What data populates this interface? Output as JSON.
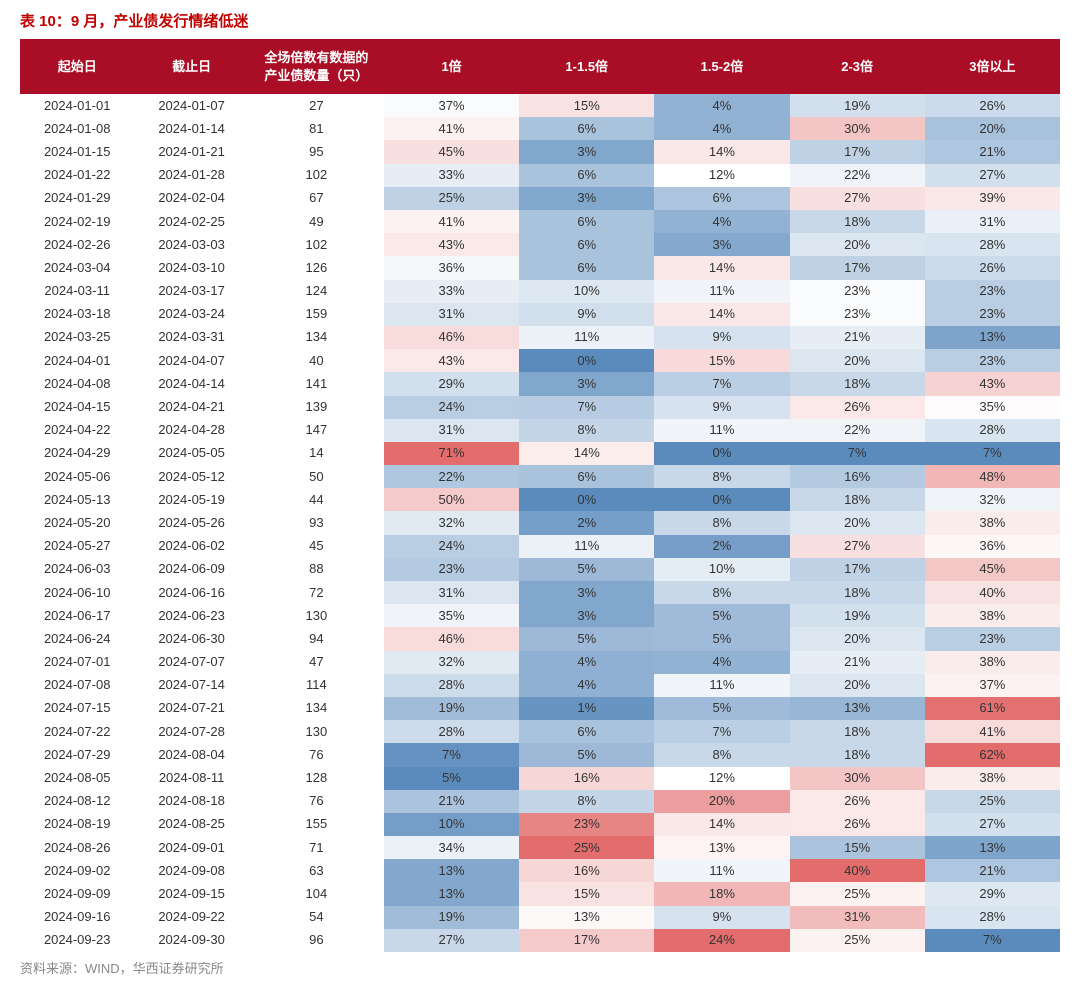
{
  "title": "表 10：9 月，产业债发行情绪低迷",
  "footer": "资料来源：WIND，华西证券研究所",
  "colors": {
    "header_bg": "#a90e26",
    "header_fg": "#ffffff",
    "title_color": "#c00000"
  },
  "columns": [
    "起始日",
    "截止日",
    "全场倍数有数据的\n产业债数量（只）",
    "1倍",
    "1-1.5倍",
    "1.5-2倍",
    "2-3倍",
    "3倍以上"
  ],
  "heat_columns": [
    3,
    4,
    5,
    6,
    7
  ],
  "rows": [
    {
      "start": "2024-01-01",
      "end": "2024-01-07",
      "count": 27,
      "p": [
        37,
        15,
        4,
        19,
        26
      ]
    },
    {
      "start": "2024-01-08",
      "end": "2024-01-14",
      "count": 81,
      "p": [
        41,
        6,
        4,
        30,
        20
      ]
    },
    {
      "start": "2024-01-15",
      "end": "2024-01-21",
      "count": 95,
      "p": [
        45,
        3,
        14,
        17,
        21
      ]
    },
    {
      "start": "2024-01-22",
      "end": "2024-01-28",
      "count": 102,
      "p": [
        33,
        6,
        12,
        22,
        27
      ]
    },
    {
      "start": "2024-01-29",
      "end": "2024-02-04",
      "count": 67,
      "p": [
        25,
        3,
        6,
        27,
        39
      ]
    },
    {
      "start": "2024-02-19",
      "end": "2024-02-25",
      "count": 49,
      "p": [
        41,
        6,
        4,
        18,
        31
      ]
    },
    {
      "start": "2024-02-26",
      "end": "2024-03-03",
      "count": 102,
      "p": [
        43,
        6,
        3,
        20,
        28
      ]
    },
    {
      "start": "2024-03-04",
      "end": "2024-03-10",
      "count": 126,
      "p": [
        36,
        6,
        14,
        17,
        26
      ]
    },
    {
      "start": "2024-03-11",
      "end": "2024-03-17",
      "count": 124,
      "p": [
        33,
        10,
        11,
        23,
        23
      ]
    },
    {
      "start": "2024-03-18",
      "end": "2024-03-24",
      "count": 159,
      "p": [
        31,
        9,
        14,
        23,
        23
      ]
    },
    {
      "start": "2024-03-25",
      "end": "2024-03-31",
      "count": 134,
      "p": [
        46,
        11,
        9,
        21,
        13
      ]
    },
    {
      "start": "2024-04-01",
      "end": "2024-04-07",
      "count": 40,
      "p": [
        43,
        0,
        15,
        20,
        23
      ]
    },
    {
      "start": "2024-04-08",
      "end": "2024-04-14",
      "count": 141,
      "p": [
        29,
        3,
        7,
        18,
        43
      ]
    },
    {
      "start": "2024-04-15",
      "end": "2024-04-21",
      "count": 139,
      "p": [
        24,
        7,
        9,
        26,
        35
      ]
    },
    {
      "start": "2024-04-22",
      "end": "2024-04-28",
      "count": 147,
      "p": [
        31,
        8,
        11,
        22,
        28
      ]
    },
    {
      "start": "2024-04-29",
      "end": "2024-05-05",
      "count": 14,
      "p": [
        71,
        14,
        0,
        7,
        7
      ]
    },
    {
      "start": "2024-05-06",
      "end": "2024-05-12",
      "count": 50,
      "p": [
        22,
        6,
        8,
        16,
        48
      ]
    },
    {
      "start": "2024-05-13",
      "end": "2024-05-19",
      "count": 44,
      "p": [
        50,
        0,
        0,
        18,
        32
      ]
    },
    {
      "start": "2024-05-20",
      "end": "2024-05-26",
      "count": 93,
      "p": [
        32,
        2,
        8,
        20,
        38
      ]
    },
    {
      "start": "2024-05-27",
      "end": "2024-06-02",
      "count": 45,
      "p": [
        24,
        11,
        2,
        27,
        36
      ]
    },
    {
      "start": "2024-06-03",
      "end": "2024-06-09",
      "count": 88,
      "p": [
        23,
        5,
        10,
        17,
        45
      ]
    },
    {
      "start": "2024-06-10",
      "end": "2024-06-16",
      "count": 72,
      "p": [
        31,
        3,
        8,
        18,
        40
      ]
    },
    {
      "start": "2024-06-17",
      "end": "2024-06-23",
      "count": 130,
      "p": [
        35,
        3,
        5,
        19,
        38
      ]
    },
    {
      "start": "2024-06-24",
      "end": "2024-06-30",
      "count": 94,
      "p": [
        46,
        5,
        5,
        20,
        23
      ]
    },
    {
      "start": "2024-07-01",
      "end": "2024-07-07",
      "count": 47,
      "p": [
        32,
        4,
        4,
        21,
        38
      ]
    },
    {
      "start": "2024-07-08",
      "end": "2024-07-14",
      "count": 114,
      "p": [
        28,
        4,
        11,
        20,
        37
      ]
    },
    {
      "start": "2024-07-15",
      "end": "2024-07-21",
      "count": 134,
      "p": [
        19,
        1,
        5,
        13,
        61
      ]
    },
    {
      "start": "2024-07-22",
      "end": "2024-07-28",
      "count": 130,
      "p": [
        28,
        6,
        7,
        18,
        41
      ]
    },
    {
      "start": "2024-07-29",
      "end": "2024-08-04",
      "count": 76,
      "p": [
        7,
        5,
        8,
        18,
        62
      ]
    },
    {
      "start": "2024-08-05",
      "end": "2024-08-11",
      "count": 128,
      "p": [
        5,
        16,
        12,
        30,
        38
      ]
    },
    {
      "start": "2024-08-12",
      "end": "2024-08-18",
      "count": 76,
      "p": [
        21,
        8,
        20,
        26,
        25
      ]
    },
    {
      "start": "2024-08-19",
      "end": "2024-08-25",
      "count": 155,
      "p": [
        10,
        23,
        14,
        26,
        27
      ]
    },
    {
      "start": "2024-08-26",
      "end": "2024-09-01",
      "count": 71,
      "p": [
        34,
        25,
        13,
        15,
        13
      ]
    },
    {
      "start": "2024-09-02",
      "end": "2024-09-08",
      "count": 63,
      "p": [
        13,
        16,
        11,
        40,
        21
      ]
    },
    {
      "start": "2024-09-09",
      "end": "2024-09-15",
      "count": 104,
      "p": [
        13,
        15,
        18,
        25,
        29
      ]
    },
    {
      "start": "2024-09-16",
      "end": "2024-09-22",
      "count": 54,
      "p": [
        19,
        13,
        9,
        31,
        28
      ]
    },
    {
      "start": "2024-09-23",
      "end": "2024-09-30",
      "count": 96,
      "p": [
        27,
        17,
        24,
        25,
        7
      ]
    }
  ],
  "heatmap": {
    "blue": "#5b8bbd",
    "red": "#e36c6c",
    "white": "#ffffff"
  }
}
